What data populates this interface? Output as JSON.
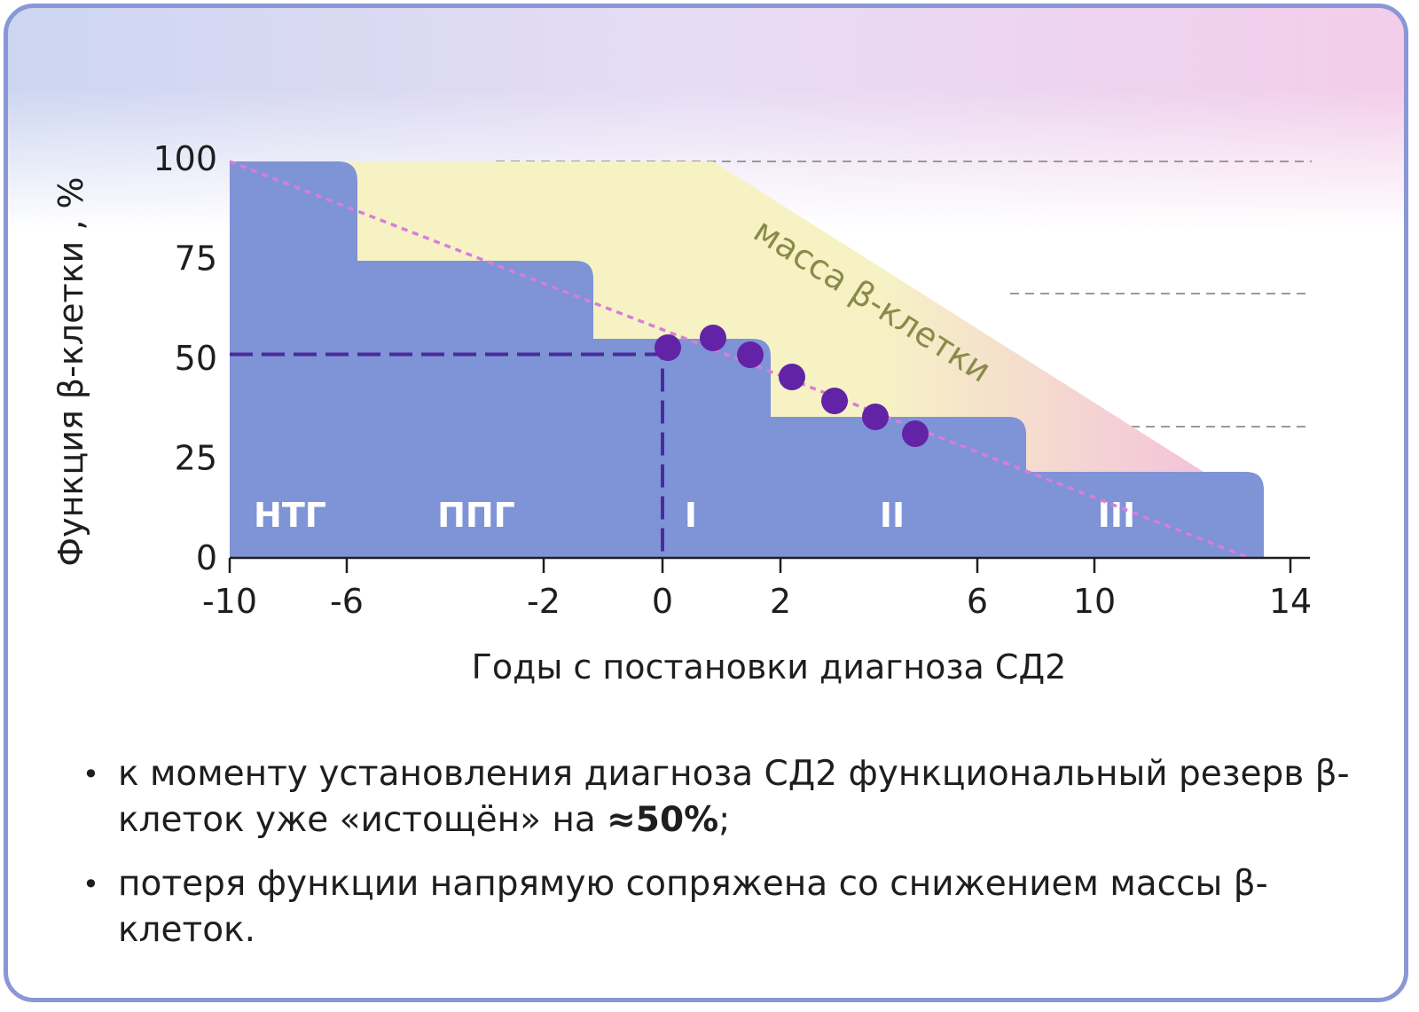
{
  "colors": {
    "stage_fill": "#7f93d7",
    "mass_fill": "#f6f2c4",
    "mass_fill_end": "#f3bfdc",
    "dots": "#6223a6",
    "function_trend": "#d77ed8",
    "marker_line": "#4a2b9a",
    "grid": "#9a9a9a",
    "mass_label": "#8a8a4a"
  },
  "chart_data": {
    "type": "area",
    "ylabel": "Функция β-клетки , %",
    "xlabel": "Годы с постановки диагноза СД2",
    "x_ticks": [
      -10,
      -6,
      -2,
      0,
      2,
      6,
      10,
      14
    ],
    "y_ticks": [
      0,
      25,
      50,
      75,
      100
    ],
    "ylim": [
      0,
      100
    ],
    "grid": "dashed horizontal lines on the right",
    "stages": [
      {
        "label": "НТГ",
        "level": 100
      },
      {
        "label": "ППГ",
        "level": 75
      },
      {
        "label": "I",
        "level": 55
      },
      {
        "label": "II",
        "level": 36
      },
      {
        "label": "III",
        "level": 22
      }
    ],
    "mass_label": "масса β-клетки",
    "dots": [
      {
        "x": 0.2,
        "y": 53
      },
      {
        "x": 1.2,
        "y": 56
      },
      {
        "x": 2.0,
        "y": 52
      },
      {
        "x": 3.0,
        "y": 46
      },
      {
        "x": 4.0,
        "y": 40
      },
      {
        "x": 5.0,
        "y": 36
      },
      {
        "x": 6.0,
        "y": 32
      }
    ],
    "marker": {
      "x": 0,
      "y": 51
    },
    "trend": {
      "from": {
        "x": -10,
        "y": 100
      },
      "to": {
        "x": 14,
        "y": 0
      }
    }
  },
  "notes": [
    {
      "text": "к моменту установления диагноза СД2 функциональный резерв β-клеток уже «истощён» на ",
      "bold": "≈50%",
      "tail": ";"
    },
    {
      "text": "потеря функции напрямую сопряжена со снижением массы β-клеток.",
      "bold": "",
      "tail": ""
    }
  ],
  "bullet": "•"
}
